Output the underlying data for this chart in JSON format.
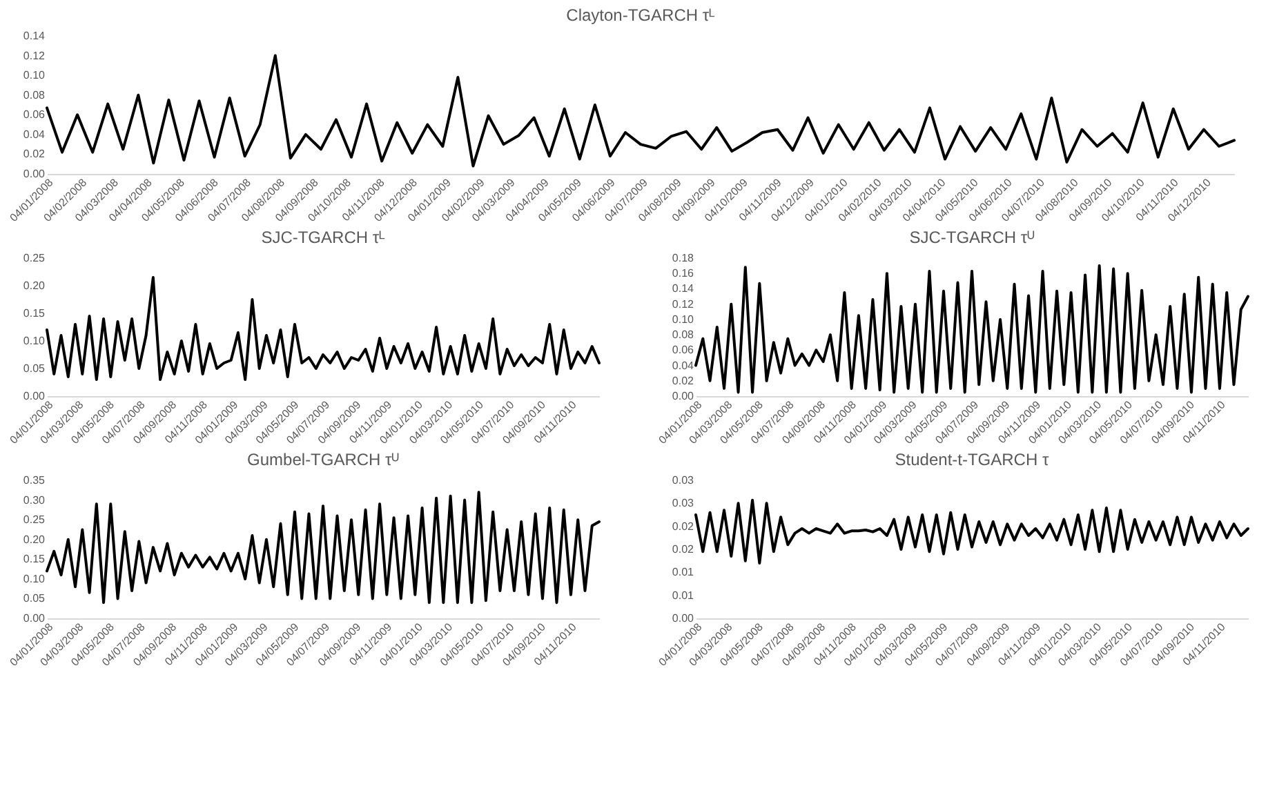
{
  "chart_data": [
    {
      "type": "line",
      "title": "Clayton-TGARCH τᴸ",
      "grid": false,
      "x": [
        "2008-01-04",
        "2008-01-18",
        "2008-02-01",
        "2008-02-15",
        "2008-02-29",
        "2008-03-14",
        "2008-03-28",
        "2008-04-11",
        "2008-04-25",
        "2008-05-09",
        "2008-05-23",
        "2008-06-06",
        "2008-06-20",
        "2008-07-04",
        "2008-07-18",
        "2008-08-01",
        "2008-08-15",
        "2008-08-29",
        "2008-09-12",
        "2008-09-26",
        "2008-10-10",
        "2008-10-24",
        "2008-11-07",
        "2008-11-21",
        "2008-12-05",
        "2008-12-19",
        "2009-01-02",
        "2009-01-16",
        "2009-01-30",
        "2009-02-13",
        "2009-02-27",
        "2009-03-13",
        "2009-03-27",
        "2009-04-10",
        "2009-04-24",
        "2009-05-08",
        "2009-05-22",
        "2009-06-05",
        "2009-06-19",
        "2009-07-03",
        "2009-07-17",
        "2009-07-31",
        "2009-08-14",
        "2009-08-28",
        "2009-09-11",
        "2009-09-25",
        "2009-10-09",
        "2009-10-23",
        "2009-11-06",
        "2009-11-20",
        "2009-12-04",
        "2009-12-18",
        "2010-01-01",
        "2010-01-15",
        "2010-01-29",
        "2010-02-12",
        "2010-02-26",
        "2010-03-12",
        "2010-03-26",
        "2010-04-09",
        "2010-04-23",
        "2010-05-07",
        "2010-05-21",
        "2010-06-04",
        "2010-06-18",
        "2010-07-02",
        "2010-07-16",
        "2010-07-30",
        "2010-08-13",
        "2010-08-27",
        "2010-09-10",
        "2010-09-24",
        "2010-10-08",
        "2010-10-22",
        "2010-11-05",
        "2010-11-19",
        "2010-12-03",
        "2010-12-17",
        "2010-12-31"
      ],
      "xlim": [
        "2008-01-04",
        "2010-12-31"
      ],
      "xticks": [
        {
          "value": "2008-01-04",
          "label": "04/01/2008"
        },
        {
          "value": "2008-02-04",
          "label": "04/02/2008"
        },
        {
          "value": "2008-03-04",
          "label": "04/03/2008"
        },
        {
          "value": "2008-04-04",
          "label": "04/04/2008"
        },
        {
          "value": "2008-05-04",
          "label": "04/05/2008"
        },
        {
          "value": "2008-06-04",
          "label": "04/06/2008"
        },
        {
          "value": "2008-07-04",
          "label": "04/07/2008"
        },
        {
          "value": "2008-08-04",
          "label": "04/08/2008"
        },
        {
          "value": "2008-09-04",
          "label": "04/09/2008"
        },
        {
          "value": "2008-10-04",
          "label": "04/10/2008"
        },
        {
          "value": "2008-11-04",
          "label": "04/11/2008"
        },
        {
          "value": "2008-12-04",
          "label": "04/12/2008"
        },
        {
          "value": "2009-01-04",
          "label": "04/01/2009"
        },
        {
          "value": "2009-02-04",
          "label": "04/02/2009"
        },
        {
          "value": "2009-03-04",
          "label": "04/03/2009"
        },
        {
          "value": "2009-04-04",
          "label": "04/04/2009"
        },
        {
          "value": "2009-05-04",
          "label": "04/05/2009"
        },
        {
          "value": "2009-06-04",
          "label": "04/06/2009"
        },
        {
          "value": "2009-07-04",
          "label": "04/07/2009"
        },
        {
          "value": "2009-08-04",
          "label": "04/08/2009"
        },
        {
          "value": "2009-09-04",
          "label": "04/09/2009"
        },
        {
          "value": "2009-10-04",
          "label": "04/10/2009"
        },
        {
          "value": "2009-11-04",
          "label": "04/11/2009"
        },
        {
          "value": "2009-12-04",
          "label": "04/12/2009"
        },
        {
          "value": "2010-01-04",
          "label": "04/01/2010"
        },
        {
          "value": "2010-02-04",
          "label": "04/02/2010"
        },
        {
          "value": "2010-03-04",
          "label": "04/03/2010"
        },
        {
          "value": "2010-04-04",
          "label": "04/04/2010"
        },
        {
          "value": "2010-05-04",
          "label": "04/05/2010"
        },
        {
          "value": "2010-06-04",
          "label": "04/06/2010"
        },
        {
          "value": "2010-07-04",
          "label": "04/07/2010"
        },
        {
          "value": "2010-08-04",
          "label": "04/08/2010"
        },
        {
          "value": "2010-09-04",
          "label": "04/09/2010"
        },
        {
          "value": "2010-10-04",
          "label": "04/10/2010"
        },
        {
          "value": "2010-11-04",
          "label": "04/11/2010"
        },
        {
          "value": "2010-12-04",
          "label": "04/12/2010"
        }
      ],
      "ylim": [
        0,
        0.14
      ],
      "yticks": [
        {
          "value": 0,
          "label": "0.00"
        },
        {
          "value": 0.02,
          "label": "0.02"
        },
        {
          "value": 0.04,
          "label": "0.04"
        },
        {
          "value": 0.06,
          "label": "0.06"
        },
        {
          "value": 0.08,
          "label": "0.08"
        },
        {
          "value": 0.1,
          "label": "0.10"
        },
        {
          "value": 0.12,
          "label": "0.12"
        },
        {
          "value": 0.14,
          "label": "0.14"
        }
      ],
      "series": [
        {
          "color": "#000000",
          "values": [
            0.067,
            0.022,
            0.06,
            0.022,
            0.071,
            0.025,
            0.08,
            0.011,
            0.075,
            0.014,
            0.074,
            0.017,
            0.077,
            0.018,
            0.05,
            0.12,
            0.016,
            0.04,
            0.025,
            0.055,
            0.017,
            0.071,
            0.013,
            0.052,
            0.021,
            0.05,
            0.028,
            0.098,
            0.008,
            0.059,
            0.03,
            0.039,
            0.057,
            0.018,
            0.066,
            0.015,
            0.07,
            0.018,
            0.042,
            0.03,
            0.026,
            0.038,
            0.043,
            0.025,
            0.047,
            0.023,
            0.032,
            0.042,
            0.045,
            0.024,
            0.057,
            0.021,
            0.05,
            0.025,
            0.052,
            0.024,
            0.045,
            0.022,
            0.067,
            0.015,
            0.048,
            0.023,
            0.047,
            0.025,
            0.061,
            0.015,
            0.077,
            0.012,
            0.045,
            0.028,
            0.041,
            0.022,
            0.072,
            0.017,
            0.066,
            0.025,
            0.045,
            0.028,
            0.034
          ]
        }
      ]
    },
    {
      "type": "line",
      "title": "SJC-TGARCH τᴸ",
      "grid": false,
      "x": [
        "2008-01-04",
        "2008-01-18",
        "2008-02-01",
        "2008-02-15",
        "2008-02-29",
        "2008-03-14",
        "2008-03-28",
        "2008-04-11",
        "2008-04-25",
        "2008-05-09",
        "2008-05-23",
        "2008-06-06",
        "2008-06-20",
        "2008-07-04",
        "2008-07-18",
        "2008-08-01",
        "2008-08-15",
        "2008-08-29",
        "2008-09-12",
        "2008-09-26",
        "2008-10-10",
        "2008-10-24",
        "2008-11-07",
        "2008-11-21",
        "2008-12-05",
        "2008-12-19",
        "2009-01-02",
        "2009-01-16",
        "2009-01-30",
        "2009-02-13",
        "2009-02-27",
        "2009-03-13",
        "2009-03-27",
        "2009-04-10",
        "2009-04-24",
        "2009-05-08",
        "2009-05-22",
        "2009-06-05",
        "2009-06-19",
        "2009-07-03",
        "2009-07-17",
        "2009-07-31",
        "2009-08-14",
        "2009-08-28",
        "2009-09-11",
        "2009-09-25",
        "2009-10-09",
        "2009-10-23",
        "2009-11-06",
        "2009-11-20",
        "2009-12-04",
        "2009-12-18",
        "2010-01-01",
        "2010-01-15",
        "2010-01-29",
        "2010-02-12",
        "2010-02-26",
        "2010-03-12",
        "2010-03-26",
        "2010-04-09",
        "2010-04-23",
        "2010-05-07",
        "2010-05-21",
        "2010-06-04",
        "2010-06-18",
        "2010-07-02",
        "2010-07-16",
        "2010-07-30",
        "2010-08-13",
        "2010-08-27",
        "2010-09-10",
        "2010-09-24",
        "2010-10-08",
        "2010-10-22",
        "2010-11-05",
        "2010-11-19",
        "2010-12-03",
        "2010-12-17",
        "2010-12-31"
      ],
      "xlim": [
        "2008-01-04",
        "2010-12-31"
      ],
      "xticks": [
        {
          "value": "2008-01-04",
          "label": "04/01/2008"
        },
        {
          "value": "2008-03-04",
          "label": "04/03/2008"
        },
        {
          "value": "2008-05-04",
          "label": "04/05/2008"
        },
        {
          "value": "2008-07-04",
          "label": "04/07/2008"
        },
        {
          "value": "2008-09-04",
          "label": "04/09/2008"
        },
        {
          "value": "2008-11-04",
          "label": "04/11/2008"
        },
        {
          "value": "2009-01-04",
          "label": "04/01/2009"
        },
        {
          "value": "2009-03-04",
          "label": "04/03/2009"
        },
        {
          "value": "2009-05-04",
          "label": "04/05/2009"
        },
        {
          "value": "2009-07-04",
          "label": "04/07/2009"
        },
        {
          "value": "2009-09-04",
          "label": "04/09/2009"
        },
        {
          "value": "2009-11-04",
          "label": "04/11/2009"
        },
        {
          "value": "2010-01-04",
          "label": "04/01/2010"
        },
        {
          "value": "2010-03-04",
          "label": "04/03/2010"
        },
        {
          "value": "2010-05-04",
          "label": "04/05/2010"
        },
        {
          "value": "2010-07-04",
          "label": "04/07/2010"
        },
        {
          "value": "2010-09-04",
          "label": "04/09/2010"
        },
        {
          "value": "2010-11-04",
          "label": "04/11/2010"
        }
      ],
      "ylim": [
        0,
        0.25
      ],
      "yticks": [
        {
          "value": 0,
          "label": "0.00"
        },
        {
          "value": 0.05,
          "label": "0.05"
        },
        {
          "value": 0.1,
          "label": "0.10"
        },
        {
          "value": 0.15,
          "label": "0.15"
        },
        {
          "value": 0.2,
          "label": "0.20"
        },
        {
          "value": 0.25,
          "label": "0.25"
        }
      ],
      "series": [
        {
          "color": "#000000",
          "values": [
            0.12,
            0.04,
            0.11,
            0.035,
            0.13,
            0.04,
            0.145,
            0.03,
            0.14,
            0.035,
            0.135,
            0.065,
            0.14,
            0.05,
            0.11,
            0.215,
            0.03,
            0.08,
            0.04,
            0.1,
            0.045,
            0.13,
            0.04,
            0.095,
            0.05,
            0.06,
            0.065,
            0.115,
            0.03,
            0.175,
            0.05,
            0.11,
            0.06,
            0.12,
            0.035,
            0.13,
            0.06,
            0.07,
            0.05,
            0.075,
            0.06,
            0.08,
            0.05,
            0.07,
            0.065,
            0.085,
            0.045,
            0.105,
            0.05,
            0.09,
            0.06,
            0.095,
            0.05,
            0.08,
            0.045,
            0.125,
            0.04,
            0.09,
            0.04,
            0.11,
            0.045,
            0.095,
            0.05,
            0.14,
            0.04,
            0.085,
            0.055,
            0.075,
            0.055,
            0.07,
            0.06,
            0.13,
            0.04,
            0.12,
            0.05,
            0.08,
            0.06,
            0.09,
            0.06
          ]
        }
      ]
    },
    {
      "type": "line",
      "title": "SJC-TGARCH τᵁ",
      "grid": false,
      "x": [
        "2008-01-04",
        "2008-01-18",
        "2008-02-01",
        "2008-02-15",
        "2008-02-29",
        "2008-03-14",
        "2008-03-28",
        "2008-04-11",
        "2008-04-25",
        "2008-05-09",
        "2008-05-23",
        "2008-06-06",
        "2008-06-20",
        "2008-07-04",
        "2008-07-18",
        "2008-08-01",
        "2008-08-15",
        "2008-08-29",
        "2008-09-12",
        "2008-09-26",
        "2008-10-10",
        "2008-10-24",
        "2008-11-07",
        "2008-11-21",
        "2008-12-05",
        "2008-12-19",
        "2009-01-02",
        "2009-01-16",
        "2009-01-30",
        "2009-02-13",
        "2009-02-27",
        "2009-03-13",
        "2009-03-27",
        "2009-04-10",
        "2009-04-24",
        "2009-05-08",
        "2009-05-22",
        "2009-06-05",
        "2009-06-19",
        "2009-07-03",
        "2009-07-17",
        "2009-07-31",
        "2009-08-14",
        "2009-08-28",
        "2009-09-11",
        "2009-09-25",
        "2009-10-09",
        "2009-10-23",
        "2009-11-06",
        "2009-11-20",
        "2009-12-04",
        "2009-12-18",
        "2010-01-01",
        "2010-01-15",
        "2010-01-29",
        "2010-02-12",
        "2010-02-26",
        "2010-03-12",
        "2010-03-26",
        "2010-04-09",
        "2010-04-23",
        "2010-05-07",
        "2010-05-21",
        "2010-06-04",
        "2010-06-18",
        "2010-07-02",
        "2010-07-16",
        "2010-07-30",
        "2010-08-13",
        "2010-08-27",
        "2010-09-10",
        "2010-09-24",
        "2010-10-08",
        "2010-10-22",
        "2010-11-05",
        "2010-11-19",
        "2010-12-03",
        "2010-12-17",
        "2010-12-31"
      ],
      "xlim": [
        "2008-01-04",
        "2010-12-31"
      ],
      "xticks": [
        {
          "value": "2008-01-04",
          "label": "04/01/2008"
        },
        {
          "value": "2008-03-04",
          "label": "04/03/2008"
        },
        {
          "value": "2008-05-04",
          "label": "04/05/2008"
        },
        {
          "value": "2008-07-04",
          "label": "04/07/2008"
        },
        {
          "value": "2008-09-04",
          "label": "04/09/2008"
        },
        {
          "value": "2008-11-04",
          "label": "04/11/2008"
        },
        {
          "value": "2009-01-04",
          "label": "04/01/2009"
        },
        {
          "value": "2009-03-04",
          "label": "04/03/2009"
        },
        {
          "value": "2009-05-04",
          "label": "04/05/2009"
        },
        {
          "value": "2009-07-04",
          "label": "04/07/2009"
        },
        {
          "value": "2009-09-04",
          "label": "04/09/2009"
        },
        {
          "value": "2009-11-04",
          "label": "04/11/2009"
        },
        {
          "value": "2010-01-04",
          "label": "04/01/2010"
        },
        {
          "value": "2010-03-04",
          "label": "04/03/2010"
        },
        {
          "value": "2010-05-04",
          "label": "04/05/2010"
        },
        {
          "value": "2010-07-04",
          "label": "04/07/2010"
        },
        {
          "value": "2010-09-04",
          "label": "04/09/2010"
        },
        {
          "value": "2010-11-04",
          "label": "04/11/2010"
        }
      ],
      "ylim": [
        0,
        0.18
      ],
      "yticks": [
        {
          "value": 0,
          "label": "0.00"
        },
        {
          "value": 0.02,
          "label": "0.02"
        },
        {
          "value": 0.04,
          "label": "0.04"
        },
        {
          "value": 0.06,
          "label": "0.06"
        },
        {
          "value": 0.08,
          "label": "0.08"
        },
        {
          "value": 0.1,
          "label": "0.10"
        },
        {
          "value": 0.12,
          "label": "0.12"
        },
        {
          "value": 0.14,
          "label": "0.14"
        },
        {
          "value": 0.16,
          "label": "0.16"
        },
        {
          "value": 0.18,
          "label": "0.18"
        }
      ],
      "series": [
        {
          "color": "#000000",
          "values": [
            0.04,
            0.075,
            0.02,
            0.09,
            0.01,
            0.12,
            0.005,
            0.168,
            0.005,
            0.147,
            0.02,
            0.07,
            0.03,
            0.075,
            0.04,
            0.055,
            0.04,
            0.06,
            0.045,
            0.08,
            0.02,
            0.135,
            0.01,
            0.105,
            0.01,
            0.126,
            0.008,
            0.16,
            0.005,
            0.117,
            0.01,
            0.12,
            0.005,
            0.163,
            0.005,
            0.137,
            0.01,
            0.148,
            0.005,
            0.163,
            0.015,
            0.123,
            0.02,
            0.1,
            0.01,
            0.146,
            0.01,
            0.131,
            0.005,
            0.163,
            0.01,
            0.137,
            0.015,
            0.135,
            0.005,
            0.158,
            0.005,
            0.17,
            0.005,
            0.166,
            0.005,
            0.16,
            0.01,
            0.138,
            0.02,
            0.08,
            0.015,
            0.117,
            0.01,
            0.133,
            0.005,
            0.155,
            0.01,
            0.146,
            0.01,
            0.135,
            0.015,
            0.113,
            0.13
          ]
        }
      ]
    },
    {
      "type": "line",
      "title": "Gumbel-TGARCH τᵁ",
      "grid": false,
      "x": [
        "2008-01-04",
        "2008-01-18",
        "2008-02-01",
        "2008-02-15",
        "2008-02-29",
        "2008-03-14",
        "2008-03-28",
        "2008-04-11",
        "2008-04-25",
        "2008-05-09",
        "2008-05-23",
        "2008-06-06",
        "2008-06-20",
        "2008-07-04",
        "2008-07-18",
        "2008-08-01",
        "2008-08-15",
        "2008-08-29",
        "2008-09-12",
        "2008-09-26",
        "2008-10-10",
        "2008-10-24",
        "2008-11-07",
        "2008-11-21",
        "2008-12-05",
        "2008-12-19",
        "2009-01-02",
        "2009-01-16",
        "2009-01-30",
        "2009-02-13",
        "2009-02-27",
        "2009-03-13",
        "2009-03-27",
        "2009-04-10",
        "2009-04-24",
        "2009-05-08",
        "2009-05-22",
        "2009-06-05",
        "2009-06-19",
        "2009-07-03",
        "2009-07-17",
        "2009-07-31",
        "2009-08-14",
        "2009-08-28",
        "2009-09-11",
        "2009-09-25",
        "2009-10-09",
        "2009-10-23",
        "2009-11-06",
        "2009-11-20",
        "2009-12-04",
        "2009-12-18",
        "2010-01-01",
        "2010-01-15",
        "2010-01-29",
        "2010-02-12",
        "2010-02-26",
        "2010-03-12",
        "2010-03-26",
        "2010-04-09",
        "2010-04-23",
        "2010-05-07",
        "2010-05-21",
        "2010-06-04",
        "2010-06-18",
        "2010-07-02",
        "2010-07-16",
        "2010-07-30",
        "2010-08-13",
        "2010-08-27",
        "2010-09-10",
        "2010-09-24",
        "2010-10-08",
        "2010-10-22",
        "2010-11-05",
        "2010-11-19",
        "2010-12-03",
        "2010-12-17",
        "2010-12-31"
      ],
      "xlim": [
        "2008-01-04",
        "2010-12-31"
      ],
      "xticks": [
        {
          "value": "2008-01-04",
          "label": "04/01/2008"
        },
        {
          "value": "2008-03-04",
          "label": "04/03/2008"
        },
        {
          "value": "2008-05-04",
          "label": "04/05/2008"
        },
        {
          "value": "2008-07-04",
          "label": "04/07/2008"
        },
        {
          "value": "2008-09-04",
          "label": "04/09/2008"
        },
        {
          "value": "2008-11-04",
          "label": "04/11/2008"
        },
        {
          "value": "2009-01-04",
          "label": "04/01/2009"
        },
        {
          "value": "2009-03-04",
          "label": "04/03/2009"
        },
        {
          "value": "2009-05-04",
          "label": "04/05/2009"
        },
        {
          "value": "2009-07-04",
          "label": "04/07/2009"
        },
        {
          "value": "2009-09-04",
          "label": "04/09/2009"
        },
        {
          "value": "2009-11-04",
          "label": "04/11/2009"
        },
        {
          "value": "2010-01-04",
          "label": "04/01/2010"
        },
        {
          "value": "2010-03-04",
          "label": "04/03/2010"
        },
        {
          "value": "2010-05-04",
          "label": "04/05/2010"
        },
        {
          "value": "2010-07-04",
          "label": "04/07/2010"
        },
        {
          "value": "2010-09-04",
          "label": "04/09/2010"
        },
        {
          "value": "2010-11-04",
          "label": "04/11/2010"
        }
      ],
      "ylim": [
        0,
        0.35
      ],
      "yticks": [
        {
          "value": 0,
          "label": "0.00"
        },
        {
          "value": 0.05,
          "label": "0.05"
        },
        {
          "value": 0.1,
          "label": "0.10"
        },
        {
          "value": 0.15,
          "label": "0.15"
        },
        {
          "value": 0.2,
          "label": "0.20"
        },
        {
          "value": 0.25,
          "label": "0.25"
        },
        {
          "value": 0.3,
          "label": "0.30"
        },
        {
          "value": 0.35,
          "label": "0.35"
        }
      ],
      "series": [
        {
          "color": "#000000",
          "values": [
            0.12,
            0.17,
            0.11,
            0.2,
            0.08,
            0.225,
            0.065,
            0.29,
            0.04,
            0.29,
            0.05,
            0.22,
            0.07,
            0.195,
            0.09,
            0.18,
            0.12,
            0.19,
            0.11,
            0.165,
            0.13,
            0.16,
            0.13,
            0.155,
            0.125,
            0.165,
            0.12,
            0.165,
            0.1,
            0.21,
            0.09,
            0.2,
            0.08,
            0.24,
            0.06,
            0.27,
            0.05,
            0.265,
            0.05,
            0.285,
            0.05,
            0.26,
            0.07,
            0.25,
            0.06,
            0.275,
            0.05,
            0.29,
            0.06,
            0.255,
            0.05,
            0.26,
            0.06,
            0.28,
            0.04,
            0.305,
            0.04,
            0.31,
            0.04,
            0.3,
            0.04,
            0.32,
            0.045,
            0.27,
            0.07,
            0.225,
            0.07,
            0.245,
            0.06,
            0.265,
            0.05,
            0.28,
            0.04,
            0.275,
            0.06,
            0.25,
            0.07,
            0.235,
            0.245
          ]
        }
      ]
    },
    {
      "type": "line",
      "title": "Student-t-TGARCH τ",
      "grid": false,
      "x": [
        "2008-01-04",
        "2008-01-18",
        "2008-02-01",
        "2008-02-15",
        "2008-02-29",
        "2008-03-14",
        "2008-03-28",
        "2008-04-11",
        "2008-04-25",
        "2008-05-09",
        "2008-05-23",
        "2008-06-06",
        "2008-06-20",
        "2008-07-04",
        "2008-07-18",
        "2008-08-01",
        "2008-08-15",
        "2008-08-29",
        "2008-09-12",
        "2008-09-26",
        "2008-10-10",
        "2008-10-24",
        "2008-11-07",
        "2008-11-21",
        "2008-12-05",
        "2008-12-19",
        "2009-01-02",
        "2009-01-16",
        "2009-01-30",
        "2009-02-13",
        "2009-02-27",
        "2009-03-13",
        "2009-03-27",
        "2009-04-10",
        "2009-04-24",
        "2009-05-08",
        "2009-05-22",
        "2009-06-05",
        "2009-06-19",
        "2009-07-03",
        "2009-07-17",
        "2009-07-31",
        "2009-08-14",
        "2009-08-28",
        "2009-09-11",
        "2009-09-25",
        "2009-10-09",
        "2009-10-23",
        "2009-11-06",
        "2009-11-20",
        "2009-12-04",
        "2009-12-18",
        "2010-01-01",
        "2010-01-15",
        "2010-01-29",
        "2010-02-12",
        "2010-02-26",
        "2010-03-12",
        "2010-03-26",
        "2010-04-09",
        "2010-04-23",
        "2010-05-07",
        "2010-05-21",
        "2010-06-04",
        "2010-06-18",
        "2010-07-02",
        "2010-07-16",
        "2010-07-30",
        "2010-08-13",
        "2010-08-27",
        "2010-09-10",
        "2010-09-24",
        "2010-10-08",
        "2010-10-22",
        "2010-11-05",
        "2010-11-19",
        "2010-12-03",
        "2010-12-17",
        "2010-12-31"
      ],
      "xlim": [
        "2008-01-04",
        "2010-12-31"
      ],
      "xticks": [
        {
          "value": "2008-01-04",
          "label": "04/01/2008"
        },
        {
          "value": "2008-03-04",
          "label": "04/03/2008"
        },
        {
          "value": "2008-05-04",
          "label": "04/05/2008"
        },
        {
          "value": "2008-07-04",
          "label": "04/07/2008"
        },
        {
          "value": "2008-09-04",
          "label": "04/09/2008"
        },
        {
          "value": "2008-11-04",
          "label": "04/11/2008"
        },
        {
          "value": "2009-01-04",
          "label": "04/01/2009"
        },
        {
          "value": "2009-03-04",
          "label": "04/03/2009"
        },
        {
          "value": "2009-05-04",
          "label": "04/05/2009"
        },
        {
          "value": "2009-07-04",
          "label": "04/07/2009"
        },
        {
          "value": "2009-09-04",
          "label": "04/09/2009"
        },
        {
          "value": "2009-11-04",
          "label": "04/11/2009"
        },
        {
          "value": "2010-01-04",
          "label": "04/01/2010"
        },
        {
          "value": "2010-03-04",
          "label": "04/03/2010"
        },
        {
          "value": "2010-05-04",
          "label": "04/05/2010"
        },
        {
          "value": "2010-07-04",
          "label": "04/07/2010"
        },
        {
          "value": "2010-09-04",
          "label": "04/09/2010"
        },
        {
          "value": "2010-11-04",
          "label": "04/11/2010"
        }
      ],
      "ylim": [
        0,
        0.03
      ],
      "yticks": [
        {
          "value": 0,
          "label": "0.00"
        },
        {
          "value": 0.005,
          "label": "0.01"
        },
        {
          "value": 0.01,
          "label": "0.01"
        },
        {
          "value": 0.015,
          "label": "0.02"
        },
        {
          "value": 0.02,
          "label": "0.02"
        },
        {
          "value": 0.025,
          "label": "0.03"
        },
        {
          "value": 0.03,
          "label": "0.03"
        }
      ],
      "series": [
        {
          "color": "#000000",
          "values": [
            0.0225,
            0.0145,
            0.023,
            0.0145,
            0.0235,
            0.0135,
            0.025,
            0.0125,
            0.0257,
            0.012,
            0.025,
            0.0145,
            0.022,
            0.016,
            0.0185,
            0.0195,
            0.0185,
            0.0195,
            0.019,
            0.0185,
            0.0205,
            0.0185,
            0.019,
            0.019,
            0.0192,
            0.0188,
            0.0195,
            0.018,
            0.0215,
            0.015,
            0.022,
            0.0155,
            0.0225,
            0.0145,
            0.0225,
            0.014,
            0.023,
            0.015,
            0.0225,
            0.0155,
            0.021,
            0.0165,
            0.021,
            0.016,
            0.0205,
            0.017,
            0.0205,
            0.018,
            0.0195,
            0.0175,
            0.0205,
            0.017,
            0.0215,
            0.016,
            0.0225,
            0.015,
            0.0235,
            0.0145,
            0.024,
            0.0145,
            0.0235,
            0.015,
            0.0215,
            0.0165,
            0.021,
            0.017,
            0.021,
            0.016,
            0.022,
            0.016,
            0.022,
            0.0165,
            0.0205,
            0.017,
            0.021,
            0.0175,
            0.0205,
            0.018,
            0.0195
          ]
        }
      ]
    }
  ]
}
